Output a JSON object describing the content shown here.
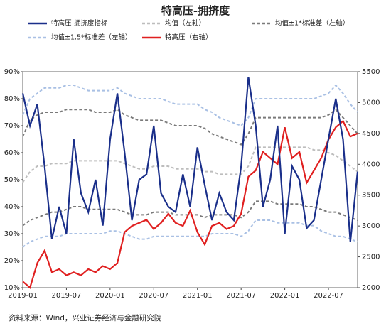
{
  "chart_data": {
    "type": "line",
    "title": "特高压-拥挤度",
    "source": "资料来源：Wind，兴业证券经济与金融研究院",
    "x": [
      "2019-01",
      "2019-02",
      "2019-03",
      "2019-04",
      "2019-05",
      "2019-06",
      "2019-07",
      "2019-08",
      "2019-09",
      "2019-10",
      "2019-11",
      "2019-12",
      "2020-01",
      "2020-02",
      "2020-03",
      "2020-04",
      "2020-05",
      "2020-06",
      "2020-07",
      "2020-08",
      "2020-09",
      "2020-10",
      "2020-11",
      "2020-12",
      "2021-01",
      "2021-02",
      "2021-03",
      "2021-04",
      "2021-05",
      "2021-06",
      "2021-07",
      "2021-08",
      "2021-09",
      "2021-10",
      "2021-11",
      "2021-12",
      "2022-01",
      "2022-02",
      "2022-03",
      "2022-04",
      "2022-05",
      "2022-06",
      "2022-07",
      "2022-08",
      "2022-09",
      "2022-10",
      "2022-11"
    ],
    "xticks": [
      "2019-01",
      "2019-07",
      "2020-01",
      "2020-07",
      "2021-01",
      "2021-07",
      "2022-01",
      "2022-07"
    ],
    "ylim": [
      10,
      90
    ],
    "yticks": [
      {
        "value": 10,
        "label": "10%"
      },
      {
        "value": 20,
        "label": "20%"
      },
      {
        "value": 30,
        "label": "30%"
      },
      {
        "value": 40,
        "label": "40%"
      },
      {
        "value": 50,
        "label": "50%"
      },
      {
        "value": 60,
        "label": "60%"
      },
      {
        "value": 70,
        "label": "70%"
      },
      {
        "value": 80,
        "label": "80%"
      },
      {
        "value": 90,
        "label": "90%"
      }
    ],
    "y2lim": [
      2000,
      5500
    ],
    "y2ticks": [
      2000,
      2500,
      3000,
      3500,
      4000,
      4500,
      5000,
      5500
    ],
    "series": [
      {
        "name": "特高压-拥挤度指标",
        "color": "#1a2f8a",
        "dash": false,
        "values": [
          82,
          70,
          78,
          55,
          28,
          40,
          30,
          65,
          45,
          38,
          50,
          33,
          65,
          82,
          60,
          35,
          50,
          52,
          70,
          45,
          40,
          38,
          52,
          40,
          62,
          48,
          35,
          45,
          38,
          35,
          55,
          88,
          70,
          40,
          50,
          70,
          30,
          55,
          50,
          32,
          35,
          50,
          65,
          80,
          65,
          27,
          53
        ]
      },
      {
        "name": "均值（左轴）",
        "color": "#bdbdbd",
        "dash": true,
        "values": [
          49,
          53,
          55,
          55,
          56,
          56,
          56,
          57,
          57,
          57,
          57,
          57,
          57,
          57,
          56,
          55,
          54,
          54,
          55,
          55,
          55,
          54,
          54,
          54,
          54,
          53,
          53,
          52,
          52,
          52,
          52,
          55,
          62,
          62,
          62,
          62,
          62,
          62,
          62,
          62,
          61,
          61,
          60,
          59,
          57,
          55,
          53
        ]
      },
      {
        "name": "均值±1*标准差（左轴）",
        "color": "#7a7a7a",
        "dash": true,
        "values": [
          66,
          72,
          74,
          75,
          75,
          75,
          76,
          76,
          76,
          76,
          75,
          75,
          75,
          76,
          74,
          73,
          72,
          72,
          72,
          72,
          71,
          70,
          70,
          70,
          70,
          69,
          67,
          66,
          65,
          64,
          63,
          67,
          73,
          73,
          73,
          73,
          73,
          73,
          73,
          73,
          73,
          73,
          74,
          76,
          73,
          70,
          67
        ]
      },
      {
        "name": null,
        "color": "#7a7a7a",
        "dash": true,
        "values": [
          33,
          35,
          36,
          37,
          38,
          38,
          39,
          40,
          40,
          39,
          39,
          39,
          39,
          39,
          38,
          37,
          37,
          37,
          38,
          38,
          38,
          37,
          37,
          37,
          37,
          36,
          37,
          37,
          37,
          37,
          36,
          38,
          42,
          42,
          42,
          41,
          41,
          41,
          41,
          40,
          40,
          39,
          38,
          38,
          37,
          36,
          35
        ]
      },
      {
        "name": "均值±1.5*标准差（左轴）",
        "color": "#a9c0e4",
        "dash": true,
        "values": [
          74,
          80,
          82,
          84,
          84,
          84,
          85,
          85,
          84,
          83,
          83,
          83,
          83,
          84,
          82,
          81,
          80,
          80,
          80,
          80,
          79,
          78,
          78,
          78,
          78,
          76,
          75,
          73,
          72,
          71,
          70,
          73,
          80,
          80,
          80,
          80,
          80,
          80,
          80,
          80,
          80,
          81,
          82,
          85,
          82,
          78,
          75
        ]
      },
      {
        "name": null,
        "color": "#a9c0e4",
        "dash": true,
        "values": [
          25,
          27,
          28,
          29,
          29,
          29,
          30,
          30,
          30,
          30,
          30,
          30,
          31,
          31,
          30,
          29,
          28,
          28,
          29,
          29,
          29,
          29,
          29,
          29,
          29,
          29,
          30,
          30,
          30,
          30,
          29,
          31,
          35,
          35,
          35,
          34,
          34,
          34,
          34,
          33,
          33,
          31,
          30,
          29,
          29,
          28,
          27
        ]
      },
      {
        "name": "特高压（右轴）",
        "color": "#e02020",
        "dash": false,
        "axis": "y2",
        "values": [
          2100,
          2000,
          2400,
          2600,
          2250,
          2300,
          2200,
          2250,
          2200,
          2300,
          2250,
          2350,
          2300,
          2400,
          2900,
          3000,
          3050,
          3100,
          2950,
          3050,
          3200,
          3050,
          3000,
          3250,
          2900,
          2700,
          3000,
          3050,
          2950,
          3000,
          3200,
          3800,
          3900,
          4200,
          4100,
          4000,
          4600,
          4100,
          4200,
          3700,
          3900,
          4100,
          4400,
          4600,
          4700,
          4450,
          4500
        ]
      }
    ]
  }
}
